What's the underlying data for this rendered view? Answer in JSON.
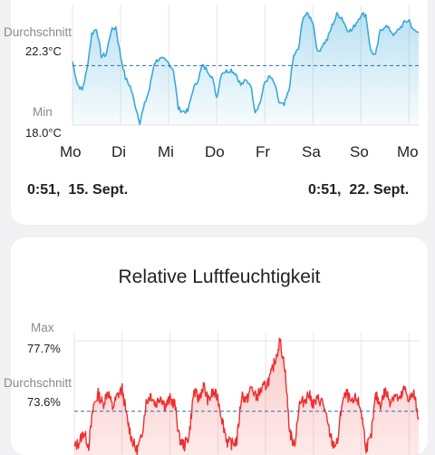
{
  "temperature_card": {
    "avg_label": "Durchschnitt",
    "avg_value": "22.3°C",
    "min_label": "Min",
    "min_value": "18.0°C",
    "days": [
      "Mo",
      "Di",
      "Mi",
      "Do",
      "Fr",
      "Sa",
      "So",
      "Mo"
    ],
    "range_start": "0:51,  15. Sept.",
    "range_end": "0:51,  22. Sept.",
    "line_color": "#3aa9d8"
  },
  "humidity_card": {
    "title": "Relative Luftfeuchtigkeit",
    "max_label": "Max",
    "max_value": "77.7%",
    "avg_label": "Durchschnitt",
    "avg_value": "73.6%",
    "line_color": "#ef2e2e"
  },
  "chart_data": [
    {
      "type": "line",
      "ylabel": "",
      "unit": "°C",
      "ylim": [
        18.0,
        26.0
      ],
      "average": 22.3,
      "categories": [
        "Mo",
        "Di",
        "Mi",
        "Do",
        "Fr",
        "Sa",
        "So",
        "Mo"
      ],
      "x": [
        0,
        0.1,
        0.2,
        0.3,
        0.4,
        0.5,
        0.6,
        0.7,
        0.8,
        0.9,
        1.0,
        1.1,
        1.2,
        1.3,
        1.4,
        1.5,
        1.6,
        1.7,
        1.8,
        1.9,
        2.0,
        2.1,
        2.2,
        2.3,
        2.4,
        2.5,
        2.6,
        2.7,
        2.8,
        2.9,
        3.0,
        3.1,
        3.2,
        3.3,
        3.4,
        3.5,
        3.6,
        3.7,
        3.8,
        3.9,
        4.0,
        4.1,
        4.2,
        4.3,
        4.4,
        4.5,
        4.6,
        4.7,
        4.8,
        4.9,
        5.0,
        5.1,
        5.2,
        5.3,
        5.4,
        5.5,
        5.6,
        5.7,
        5.8,
        5.9,
        6.0,
        6.1,
        6.2,
        6.3,
        6.4,
        6.5,
        6.6,
        6.7,
        6.8,
        6.9,
        7.0,
        7.1,
        7.2
      ],
      "values": [
        22.6,
        21.0,
        20.5,
        22.0,
        24.6,
        25.0,
        23.0,
        23.1,
        24.8,
        25.1,
        23.0,
        21.4,
        20.8,
        19.5,
        18.2,
        19.5,
        20.6,
        22.5,
        22.8,
        22.7,
        22.5,
        22.0,
        19.2,
        19.0,
        19.0,
        20.5,
        21.2,
        22.3,
        22.0,
        21.5,
        20.0,
        21.8,
        21.9,
        22.0,
        21.7,
        20.9,
        21.2,
        21.0,
        19.0,
        19.6,
        21.1,
        21.5,
        21.0,
        19.6,
        19.4,
        20.5,
        23.0,
        23.5,
        25.9,
        26.0,
        25.5,
        23.2,
        23.8,
        24.2,
        25.2,
        26.0,
        25.8,
        25.0,
        24.8,
        25.4,
        26.0,
        26.0,
        23.4,
        23.0,
        24.8,
        25.2,
        24.9,
        24.5,
        25.0,
        25.4,
        25.6,
        24.8,
        24.7
      ]
    },
    {
      "type": "line",
      "title": "Relative Luftfeuchtigkeit",
      "unit": "%",
      "ylim": [
        70.0,
        77.7
      ],
      "average": 73.6,
      "x": [
        0,
        0.1,
        0.2,
        0.3,
        0.4,
        0.5,
        0.6,
        0.7,
        0.8,
        0.9,
        1.0,
        1.1,
        1.2,
        1.3,
        1.4,
        1.5,
        1.6,
        1.7,
        1.8,
        1.9,
        2.0,
        2.1,
        2.2,
        2.3,
        2.4,
        2.5,
        2.6,
        2.7,
        2.8,
        2.9,
        3.0,
        3.1,
        3.2,
        3.3,
        3.4,
        3.5,
        3.6,
        3.7,
        3.8,
        3.9,
        4.0,
        4.1,
        4.2,
        4.3,
        4.4,
        4.5,
        4.6,
        4.7,
        4.8,
        4.9,
        5.0,
        5.1,
        5.2,
        5.3,
        5.4,
        5.5,
        5.6,
        5.7,
        5.8,
        5.9,
        6.0,
        6.1,
        6.2,
        6.3,
        6.4,
        6.5,
        6.6,
        6.7,
        6.8,
        6.9,
        7.0,
        7.1,
        7.2
      ],
      "values": [
        71.5,
        71.8,
        72.4,
        71.6,
        73.9,
        74.6,
        74.0,
        74.8,
        73.8,
        74.5,
        74.9,
        73.2,
        72.0,
        71.3,
        72.0,
        74.1,
        74.6,
        74.0,
        74.5,
        73.9,
        74.3,
        74.0,
        72.0,
        71.6,
        72.2,
        74.8,
        74.3,
        75.1,
        74.2,
        74.7,
        74.4,
        73.0,
        71.8,
        71.7,
        71.9,
        74.6,
        74.2,
        75.0,
        74.4,
        74.8,
        75.1,
        75.6,
        76.6,
        77.7,
        76.2,
        72.5,
        71.5,
        74.0,
        74.2,
        74.6,
        74.0,
        74.3,
        74.1,
        72.8,
        71.7,
        71.7,
        74.2,
        74.6,
        74.0,
        74.4,
        73.6,
        71.5,
        72.0,
        74.5,
        74.0,
        74.8,
        74.2,
        74.6,
        74.2,
        74.9,
        74.3,
        74.6,
        73.2
      ]
    }
  ]
}
